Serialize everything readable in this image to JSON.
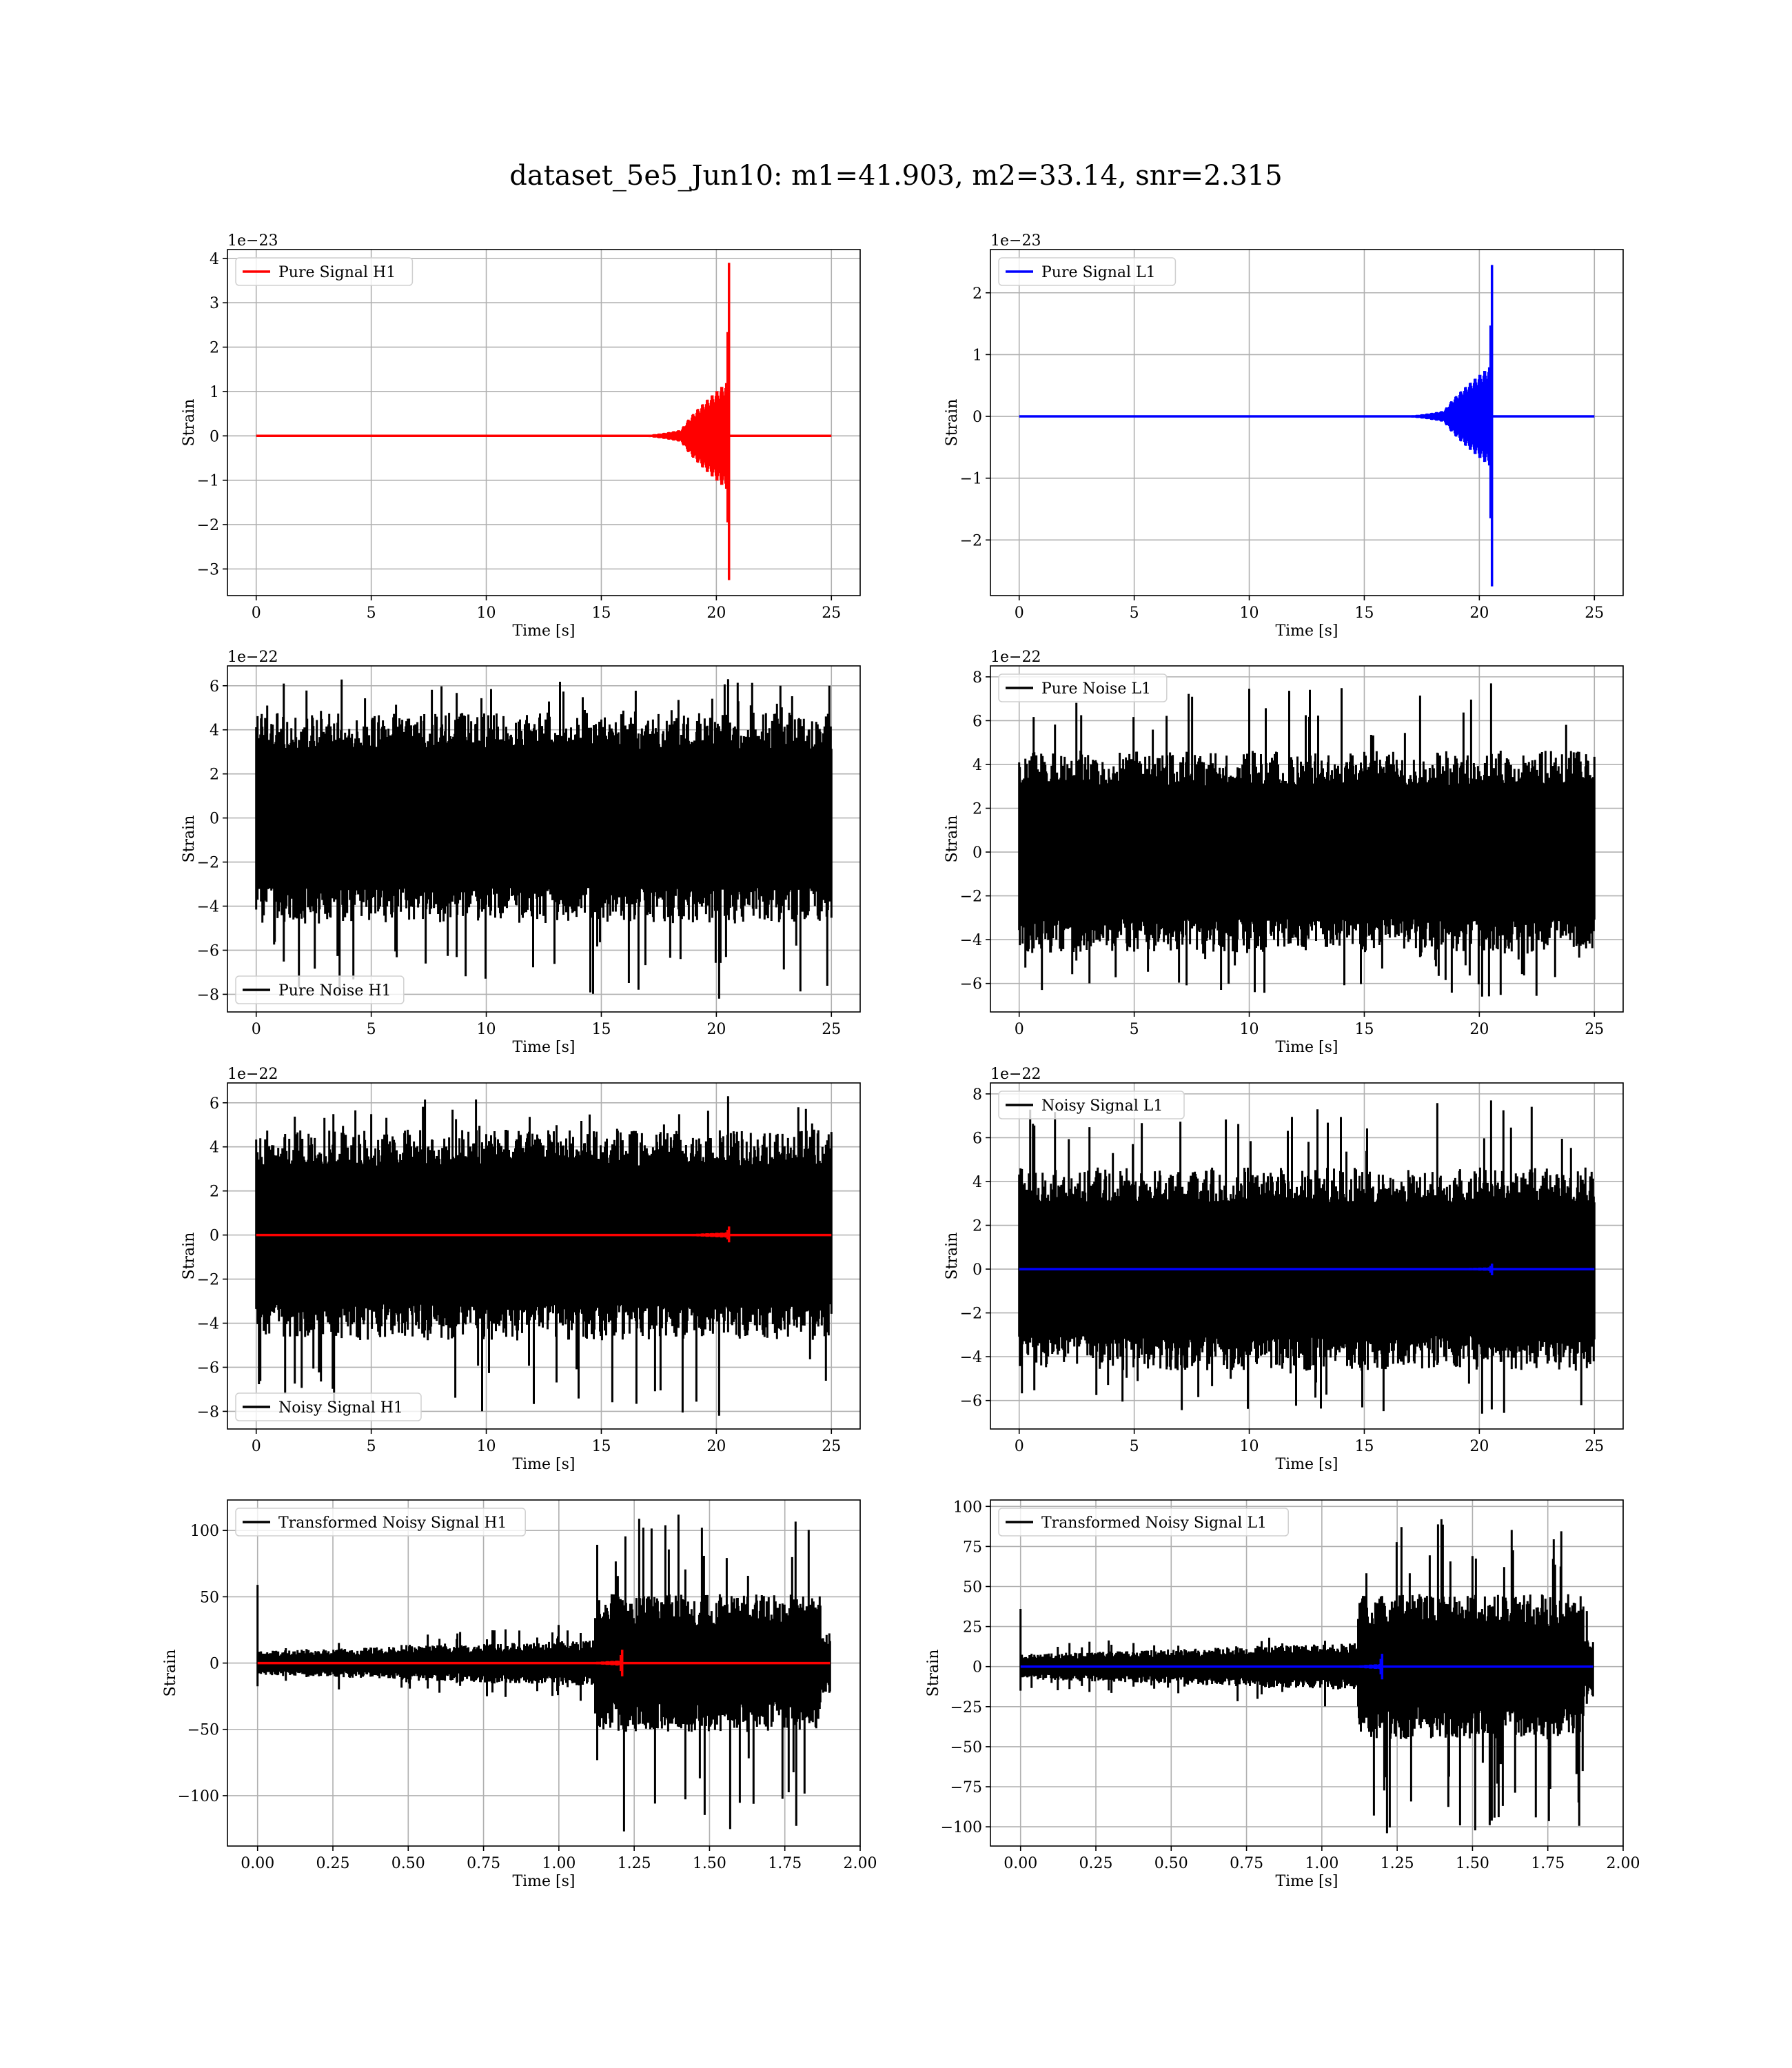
{
  "figure": {
    "title": "dataset_5e5_Jun10: m1=41.903, m2=33.14, snr=2.315"
  },
  "chart_data": [
    {
      "id": "pure-signal-h1",
      "type": "line",
      "row": 0,
      "col": 0,
      "xlabel": "Time [s]",
      "ylabel": "Strain",
      "offset_text": "1e−23",
      "xlim": [
        -1.25,
        26.25
      ],
      "ylim": [
        -3.6,
        4.2
      ],
      "xticks": [
        0,
        5,
        10,
        15,
        20,
        25
      ],
      "xtick_labels": [
        "0",
        "5",
        "10",
        "15",
        "20",
        "25"
      ],
      "yticks": [
        -3,
        -2,
        -1,
        0,
        1,
        2,
        3,
        4
      ],
      "ytick_labels": [
        "−3",
        "−2",
        "−1",
        "0",
        "1",
        "2",
        "3",
        "4"
      ],
      "grid": true,
      "legend_loc": "upper-left",
      "series": [
        {
          "name": "Pure Signal H1",
          "color": "#ff0000",
          "kind": "chirp",
          "x_start": 0,
          "x_end": 25,
          "t_merge": 20.55,
          "peak_pos": 3.9,
          "peak_neg": -3.25,
          "pre_amp": 1.2,
          "onset": 16
        }
      ]
    },
    {
      "id": "pure-signal-l1",
      "type": "line",
      "row": 0,
      "col": 1,
      "xlabel": "Time [s]",
      "ylabel": "Strain",
      "offset_text": "1e−23",
      "xlim": [
        -1.25,
        26.25
      ],
      "ylim": [
        -2.9,
        2.7
      ],
      "xticks": [
        0,
        5,
        10,
        15,
        20,
        25
      ],
      "xtick_labels": [
        "0",
        "5",
        "10",
        "15",
        "20",
        "25"
      ],
      "yticks": [
        -2,
        -1,
        0,
        1,
        2
      ],
      "ytick_labels": [
        "−2",
        "−1",
        "0",
        "1",
        "2"
      ],
      "grid": true,
      "legend_loc": "upper-left",
      "series": [
        {
          "name": "Pure Signal L1",
          "color": "#0000ff",
          "kind": "chirp",
          "x_start": 0,
          "x_end": 25,
          "t_merge": 20.55,
          "peak_pos": 2.45,
          "peak_neg": -2.75,
          "pre_amp": 0.8,
          "onset": 16
        }
      ]
    },
    {
      "id": "pure-noise-h1",
      "type": "line",
      "row": 1,
      "col": 0,
      "xlabel": "Time [s]",
      "ylabel": "Strain",
      "offset_text": "1e−22",
      "xlim": [
        -1.25,
        26.25
      ],
      "ylim": [
        -8.8,
        6.9
      ],
      "xticks": [
        0,
        5,
        10,
        15,
        20,
        25
      ],
      "xtick_labels": [
        "0",
        "5",
        "10",
        "15",
        "20",
        "25"
      ],
      "yticks": [
        -8,
        -6,
        -4,
        -2,
        0,
        2,
        4,
        6
      ],
      "ytick_labels": [
        "−8",
        "−6",
        "−4",
        "−2",
        "0",
        "2",
        "4",
        "6"
      ],
      "grid": true,
      "legend_loc": "lower-left",
      "series": [
        {
          "name": "Pure Noise H1",
          "color": "#000000",
          "kind": "noise",
          "x_start": 0,
          "x_end": 25,
          "band": 3.3,
          "max": 6.3,
          "min": -8.2
        }
      ]
    },
    {
      "id": "pure-noise-l1",
      "type": "line",
      "row": 1,
      "col": 1,
      "xlabel": "Time [s]",
      "ylabel": "Strain",
      "offset_text": "1e−22",
      "xlim": [
        -1.25,
        26.25
      ],
      "ylim": [
        -7.3,
        8.5
      ],
      "xticks": [
        0,
        5,
        10,
        15,
        20,
        25
      ],
      "xtick_labels": [
        "0",
        "5",
        "10",
        "15",
        "20",
        "25"
      ],
      "yticks": [
        -6,
        -4,
        -2,
        0,
        2,
        4,
        6,
        8
      ],
      "ytick_labels": [
        "−6",
        "−4",
        "−2",
        "0",
        "2",
        "4",
        "6",
        "8"
      ],
      "grid": true,
      "legend_loc": "upper-left",
      "series": [
        {
          "name": "Pure Noise L1",
          "color": "#000000",
          "kind": "noise",
          "x_start": 0,
          "x_end": 25,
          "band": 3.2,
          "max": 7.7,
          "min": -6.6
        }
      ]
    },
    {
      "id": "noisy-signal-h1",
      "type": "line",
      "row": 2,
      "col": 0,
      "xlabel": "Time [s]",
      "ylabel": "Strain",
      "offset_text": "1e−22",
      "xlim": [
        -1.25,
        26.25
      ],
      "ylim": [
        -8.8,
        6.9
      ],
      "xticks": [
        0,
        5,
        10,
        15,
        20,
        25
      ],
      "xtick_labels": [
        "0",
        "5",
        "10",
        "15",
        "20",
        "25"
      ],
      "yticks": [
        -8,
        -6,
        -4,
        -2,
        0,
        2,
        4,
        6
      ],
      "ytick_labels": [
        "−8",
        "−6",
        "−4",
        "−2",
        "0",
        "2",
        "4",
        "6"
      ],
      "grid": true,
      "legend_loc": "lower-left",
      "series": [
        {
          "name": "Noisy Signal H1",
          "color": "#000000",
          "kind": "noise",
          "x_start": 0,
          "x_end": 25,
          "band": 3.3,
          "max": 6.3,
          "min": -8.2
        },
        {
          "color": "#ff0000",
          "kind": "chirp",
          "x_start": 0,
          "x_end": 25,
          "t_merge": 20.55,
          "peak_pos": 0.39,
          "peak_neg": -0.33,
          "pre_amp": 0.12,
          "onset": 16
        }
      ]
    },
    {
      "id": "noisy-signal-l1",
      "type": "line",
      "row": 2,
      "col": 1,
      "xlabel": "Time [s]",
      "ylabel": "Strain",
      "offset_text": "1e−22",
      "xlim": [
        -1.25,
        26.25
      ],
      "ylim": [
        -7.3,
        8.5
      ],
      "xticks": [
        0,
        5,
        10,
        15,
        20,
        25
      ],
      "xtick_labels": [
        "0",
        "5",
        "10",
        "15",
        "20",
        "25"
      ],
      "yticks": [
        -6,
        -4,
        -2,
        0,
        2,
        4,
        6,
        8
      ],
      "ytick_labels": [
        "−6",
        "−4",
        "−2",
        "0",
        "2",
        "4",
        "6",
        "8"
      ],
      "grid": true,
      "legend_loc": "upper-left",
      "series": [
        {
          "name": "Noisy Signal L1",
          "color": "#000000",
          "kind": "noise",
          "x_start": 0,
          "x_end": 25,
          "band": 3.2,
          "max": 7.7,
          "min": -6.6
        },
        {
          "color": "#0000ff",
          "kind": "chirp",
          "x_start": 0,
          "x_end": 25,
          "t_merge": 20.55,
          "peak_pos": 0.25,
          "peak_neg": -0.28,
          "pre_amp": 0.08,
          "onset": 16
        }
      ]
    },
    {
      "id": "transformed-noisy-signal-h1",
      "type": "line",
      "row": 3,
      "col": 0,
      "xlabel": "Time [s]",
      "ylabel": "Strain",
      "offset_text": "",
      "xlim": [
        -0.1,
        2.0
      ],
      "ylim": [
        -138,
        123
      ],
      "xticks": [
        0,
        0.25,
        0.5,
        0.75,
        1.0,
        1.25,
        1.5,
        1.75,
        2.0
      ],
      "xtick_labels": [
        "0.00",
        "0.25",
        "0.50",
        "0.75",
        "1.00",
        "1.25",
        "1.50",
        "1.75",
        "2.00"
      ],
      "yticks": [
        -100,
        -50,
        0,
        50,
        100
      ],
      "ytick_labels": [
        "−100",
        "−50",
        "0",
        "50",
        "100"
      ],
      "grid": true,
      "legend_loc": "upper-left",
      "series": [
        {
          "name": "Transformed Noisy Signal H1",
          "color": "#000000",
          "kind": "whitened",
          "x_start": 0,
          "x_end": 1.9,
          "low_band": 7,
          "high_band": 40,
          "t_rise": 1.12,
          "t_fall": 1.87,
          "max": 112,
          "min": -127,
          "spike": 59
        },
        {
          "color": "#ff0000",
          "kind": "chirp",
          "x_start": 0,
          "x_end": 1.9,
          "t_merge": 1.21,
          "peak_pos": 10,
          "peak_neg": -10,
          "pre_amp": 2,
          "onset": 0.95
        }
      ]
    },
    {
      "id": "transformed-noisy-signal-l1",
      "type": "line",
      "row": 3,
      "col": 1,
      "xlabel": "Time [s]",
      "ylabel": "Strain",
      "offset_text": "",
      "xlim": [
        -0.1,
        2.0
      ],
      "ylim": [
        -112,
        104
      ],
      "xticks": [
        0,
        0.25,
        0.5,
        0.75,
        1.0,
        1.25,
        1.5,
        1.75,
        2.0
      ],
      "xtick_labels": [
        "0.00",
        "0.25",
        "0.50",
        "0.75",
        "1.00",
        "1.25",
        "1.50",
        "1.75",
        "2.00"
      ],
      "yticks": [
        -100,
        -75,
        -50,
        -25,
        0,
        25,
        50,
        75,
        100
      ],
      "ytick_labels": [
        "−100",
        "−75",
        "−50",
        "−25",
        "0",
        "25",
        "50",
        "75",
        "100"
      ],
      "grid": true,
      "legend_loc": "upper-left",
      "series": [
        {
          "name": "Transformed Noisy Signal L1",
          "color": "#000000",
          "kind": "whitened",
          "x_start": 0,
          "x_end": 1.9,
          "low_band": 6,
          "high_band": 35,
          "t_rise": 1.12,
          "t_fall": 1.87,
          "max": 92,
          "min": -104,
          "spike": 36
        },
        {
          "color": "#0000ff",
          "kind": "chirp",
          "x_start": 0,
          "x_end": 1.9,
          "t_merge": 1.2,
          "peak_pos": 8,
          "peak_neg": -8,
          "pre_amp": 1.6,
          "onset": 0.95
        }
      ]
    }
  ]
}
